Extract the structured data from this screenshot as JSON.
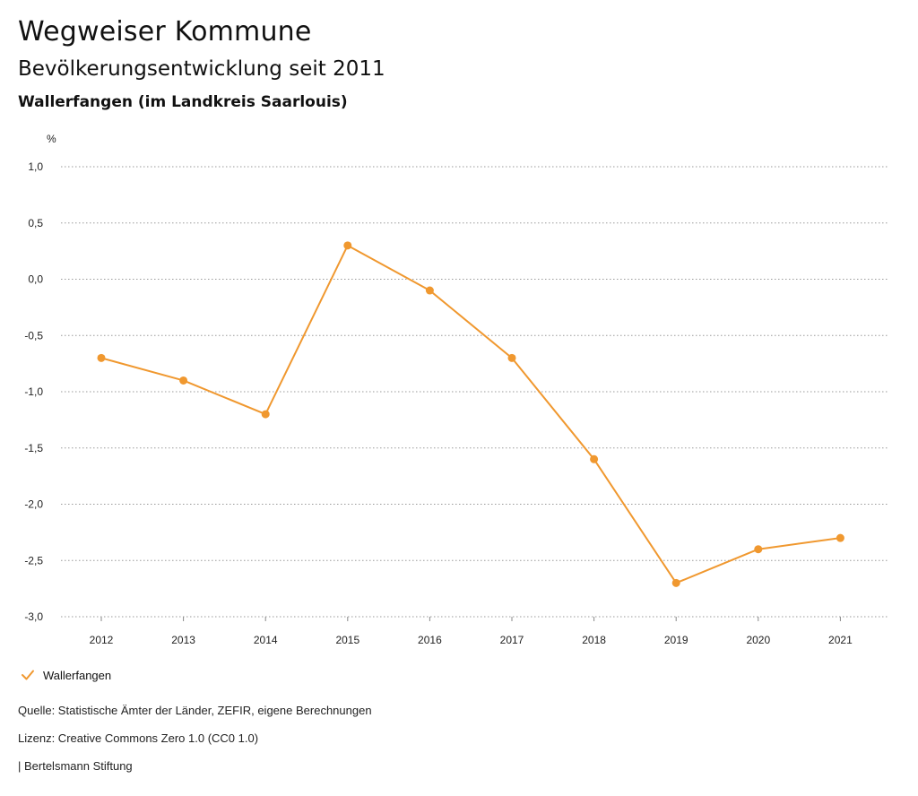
{
  "header": {
    "title": "Wegweiser Kommune",
    "subtitle": "Bevölkerungsentwicklung seit 2011",
    "region": "Wallerfangen (im Landkreis Saarlouis)"
  },
  "chart_data": {
    "type": "line",
    "title": "Bevölkerungsentwicklung seit 2011",
    "ylabel": "%",
    "xlabel": "",
    "ylim": [
      -3.0,
      1.0
    ],
    "yticks": [
      1.0,
      0.5,
      0.0,
      -0.5,
      -1.0,
      -1.5,
      -2.0,
      -2.5,
      -3.0
    ],
    "ytick_labels": [
      "1,0",
      "0,5",
      "0,0",
      "-0,5",
      "-1,0",
      "-1,5",
      "-2,0",
      "-2,5",
      "-3,0"
    ],
    "categories": [
      "2012",
      "2013",
      "2014",
      "2015",
      "2016",
      "2017",
      "2018",
      "2019",
      "2020",
      "2021"
    ],
    "series": [
      {
        "name": "Wallerfangen",
        "color": "#f0982f",
        "values": [
          -0.7,
          -0.9,
          -1.2,
          0.3,
          -0.1,
          -0.7,
          -1.6,
          -2.7,
          -2.4,
          -2.3
        ]
      }
    ],
    "grid": true,
    "legend": "bottom-left"
  },
  "legend": {
    "label": "Wallerfangen"
  },
  "footer": {
    "source": "Quelle: Statistische Ämter der Länder, ZEFIR, eigene Berechnungen",
    "license": "Lizenz: Creative Commons Zero 1.0 (CC0 1.0)",
    "publisher": "| Bertelsmann Stiftung"
  }
}
